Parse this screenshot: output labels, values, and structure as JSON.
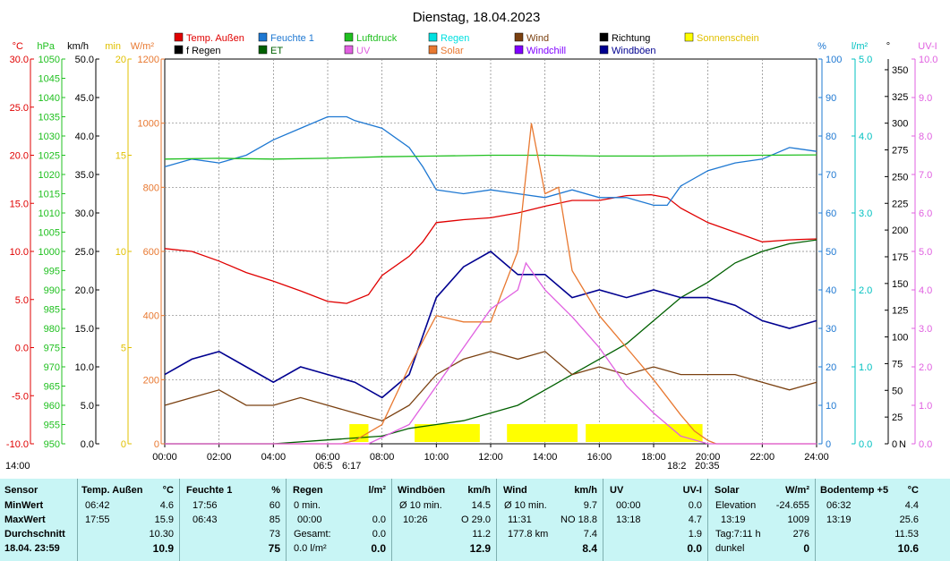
{
  "chart_data": {
    "type": "line",
    "title": "Dienstag, 18.04.2023",
    "x_ticks": [
      "00:00",
      "02:00",
      "04:00",
      "06:00",
      "08:00",
      "10:00",
      "12:00",
      "14:00",
      "16:00",
      "18:00",
      "20:00",
      "22:00",
      "24:00"
    ],
    "x_range_hours": [
      0,
      24
    ],
    "grid": true,
    "legend": [
      {
        "label": "Temp. Außen",
        "color": "#e00000"
      },
      {
        "label": "Feuchte 1",
        "color": "#1e78d2"
      },
      {
        "label": "Luftdruck",
        "color": "#20c020"
      },
      {
        "label": "Regen",
        "color": "#00e0e0"
      },
      {
        "label": "Wind",
        "color": "#7a4010"
      },
      {
        "label": "Richtung",
        "color": "#000000"
      },
      {
        "label": "Sonnenschein",
        "color": "#ffff00"
      },
      {
        "label": "f Regen",
        "color": "#000000"
      },
      {
        "label": "ET",
        "color": "#006000"
      },
      {
        "label": "UV",
        "color": "#e060e0"
      },
      {
        "label": "Solar",
        "color": "#e87830"
      },
      {
        "label": "Windchill",
        "color": "#8000ff"
      },
      {
        "label": "Windböen",
        "color": "#000090"
      }
    ],
    "left_axes": [
      {
        "unit": "°C",
        "color": "#e00000",
        "ticks": [
          "30.0",
          "25.0",
          "20.0",
          "15.0",
          "10.0",
          "5.0",
          "0.0",
          "-5.0",
          "-10.0"
        ]
      },
      {
        "unit": "hPa",
        "color": "#20c020",
        "ticks": [
          "1050",
          "1045",
          "1040",
          "1035",
          "1030",
          "1025",
          "1020",
          "1015",
          "1010",
          "1005",
          "1000",
          "995",
          "990",
          "985",
          "980",
          "975",
          "970",
          "965",
          "960",
          "955",
          "950"
        ]
      },
      {
        "unit": "km/h",
        "color": "#000000",
        "ticks": [
          "50.0",
          "45.0",
          "40.0",
          "35.0",
          "30.0",
          "25.0",
          "20.0",
          "15.0",
          "10.0",
          "5.0",
          "0.0"
        ]
      },
      {
        "unit": "min",
        "color": "#e0c000",
        "ticks": [
          "20",
          "15",
          "10",
          "5",
          "0"
        ]
      },
      {
        "unit": "W/m²",
        "color": "#e87830",
        "ticks": [
          "1200",
          "1000",
          "800",
          "600",
          "400",
          "200",
          "0"
        ]
      }
    ],
    "right_axes": [
      {
        "unit": "%",
        "color": "#1e78d2",
        "ticks": [
          "100",
          "90",
          "80",
          "70",
          "60",
          "50",
          "40",
          "30",
          "20",
          "10",
          "0"
        ]
      },
      {
        "unit": "l/m²",
        "color": "#00c0c0",
        "ticks": [
          "5.0",
          "4.0",
          "3.0",
          "2.0",
          "1.0",
          "0.0"
        ]
      },
      {
        "unit": "°",
        "color": "#000000",
        "ticks": [
          "350",
          "325",
          "300",
          "275",
          "250",
          "225",
          "200",
          "175",
          "150",
          "125",
          "100",
          "75",
          "50",
          "25",
          "0"
        ],
        "zero_label": "N"
      },
      {
        "unit": "UV-I",
        "color": "#e060e0",
        "ticks": [
          "10.0",
          "9.0",
          "8.0",
          "7.0",
          "6.0",
          "5.0",
          "4.0",
          "3.0",
          "2.0",
          "1.0",
          "0.0"
        ]
      }
    ],
    "series": [
      {
        "name": "Temp. Außen",
        "axis": "°C",
        "x": [
          0,
          1,
          2,
          3,
          4,
          5,
          6,
          6.7,
          7.5,
          8,
          9,
          9.5,
          10,
          11,
          12,
          13,
          14,
          15,
          16,
          17,
          17.9,
          18.5,
          19,
          20,
          21,
          22,
          23,
          24
        ],
        "y": [
          10.3,
          10.0,
          9.0,
          7.8,
          6.9,
          5.9,
          4.8,
          4.6,
          5.5,
          7.5,
          9.5,
          11.0,
          13.0,
          13.3,
          13.5,
          14.0,
          14.7,
          15.3,
          15.3,
          15.8,
          15.9,
          15.6,
          14.5,
          13.0,
          12.0,
          11.0,
          11.2,
          11.3
        ]
      },
      {
        "name": "Feuchte 1",
        "axis": "%",
        "x": [
          0,
          1,
          2,
          3,
          4,
          5,
          6,
          6.7,
          7,
          8,
          9,
          9.5,
          10,
          11,
          12,
          13,
          14,
          15,
          16,
          17,
          18,
          18.5,
          19,
          20,
          21,
          22,
          23,
          24
        ],
        "y": [
          72,
          74,
          73,
          75,
          79,
          82,
          85,
          85,
          84,
          82,
          77,
          72,
          66,
          65,
          66,
          65,
          64,
          66,
          64,
          64,
          62,
          62,
          67,
          71,
          73,
          74,
          77,
          76
        ]
      },
      {
        "name": "Luftdruck",
        "axis": "hPa",
        "x": [
          0,
          2,
          4,
          6,
          8,
          10,
          12,
          14,
          16,
          18,
          20,
          22,
          24
        ],
        "y": [
          1024.0,
          1024.2,
          1024.0,
          1024.2,
          1024.6,
          1024.8,
          1025.0,
          1025.0,
          1024.8,
          1024.8,
          1024.9,
          1025.0,
          1025.1
        ]
      },
      {
        "name": "ET",
        "axis": "l/m²",
        "x": [
          0,
          2,
          4,
          6,
          8,
          9,
          10,
          11,
          12,
          13,
          14,
          15,
          16,
          17,
          18,
          19,
          20,
          21,
          22,
          23,
          24
        ],
        "y": [
          0.0,
          0.0,
          0.0,
          0.05,
          0.1,
          0.2,
          0.25,
          0.3,
          0.4,
          0.5,
          0.7,
          0.9,
          1.1,
          1.3,
          1.6,
          1.9,
          2.1,
          2.35,
          2.5,
          2.6,
          2.65
        ]
      },
      {
        "name": "Wind",
        "axis": "km/h",
        "x": [
          0,
          1,
          2,
          3,
          4,
          5,
          6,
          7,
          8,
          9,
          10,
          11,
          12,
          13,
          14,
          15,
          16,
          17,
          18,
          19,
          20,
          21,
          22,
          23,
          24
        ],
        "y": [
          5,
          6,
          7,
          5,
          5,
          6,
          5,
          4,
          3,
          5,
          9,
          11,
          12,
          11,
          12,
          9,
          10,
          9,
          10,
          9,
          9,
          9,
          8,
          7,
          8
        ]
      },
      {
        "name": "Windböen",
        "axis": "km/h",
        "x": [
          0,
          1,
          2,
          3,
          4,
          5,
          6,
          7,
          8,
          9,
          10,
          11,
          12,
          13,
          14,
          15,
          16,
          17,
          18,
          19,
          20,
          21,
          22,
          23,
          24
        ],
        "y": [
          9,
          11,
          12,
          10,
          8,
          10,
          9,
          8,
          6,
          9,
          19,
          23,
          25,
          22,
          22,
          19,
          20,
          19,
          20,
          19,
          19,
          18,
          16,
          15,
          16
        ]
      },
      {
        "name": "Solar",
        "axis": "W/m²",
        "x": [
          0,
          6.5,
          7,
          8,
          9,
          10,
          11,
          12,
          13,
          13.5,
          14,
          14.5,
          15,
          16,
          17,
          18,
          19,
          19.5,
          20,
          20.3,
          24
        ],
        "y": [
          0,
          0,
          10,
          60,
          240,
          400,
          380,
          380,
          600,
          1000,
          780,
          800,
          540,
          400,
          300,
          200,
          90,
          40,
          10,
          0,
          0
        ]
      },
      {
        "name": "UV",
        "axis": "UV-I",
        "x": [
          0,
          7.5,
          9,
          10,
          11,
          12,
          13,
          13.3,
          14,
          15,
          16,
          17,
          18,
          19,
          20,
          24
        ],
        "y": [
          0,
          0,
          0.5,
          1.5,
          2.5,
          3.5,
          4.0,
          4.7,
          4.0,
          3.3,
          2.5,
          1.5,
          0.8,
          0.2,
          0,
          0
        ]
      }
    ],
    "sunshine_hours_bars": [
      [
        6.8,
        7.5
      ],
      [
        9.2,
        11.6
      ],
      [
        12.6,
        15.2
      ],
      [
        15.5,
        19.8
      ]
    ],
    "markers": {
      "sunrise": "06:5",
      "sunrise_b": "6:17",
      "sunset": "18:2",
      "sunset_b": "20:35",
      "corner": "14:00"
    }
  },
  "table": {
    "sensor": {
      "title": "Sensor",
      "rows": [
        "MinWert",
        "MaxWert",
        "Durchschnitt"
      ],
      "footer": "18.04. 23:59"
    },
    "temp": {
      "title": "Temp. Außen",
      "unit": "°C",
      "r1": [
        "06:42",
        "4.6"
      ],
      "r2": [
        "17:55",
        "15.9"
      ],
      "r3": [
        "",
        "10.30"
      ],
      "footer": "10.9"
    },
    "humidity": {
      "title": "Feuchte 1",
      "unit": "%",
      "r1": [
        "17:56",
        "60"
      ],
      "r2": [
        "06:43",
        "85"
      ],
      "r3": [
        "",
        "73"
      ],
      "footer": "75"
    },
    "rain": {
      "title": "Regen",
      "unit": "l/m²",
      "r1": [
        "0 min.",
        ""
      ],
      "r2": [
        "00:00",
        "0.0"
      ],
      "r3": [
        "Gesamt:",
        "0.0"
      ],
      "footer_label": "0.0 l/m²",
      "footer": "0.0"
    },
    "gusts": {
      "title": "Windböen",
      "unit": "km/h",
      "r1": [
        "Ø 10 min.",
        "14.5"
      ],
      "r2": [
        "10:26",
        "O 29.0"
      ],
      "r3": [
        "",
        "11.2"
      ],
      "footer": "12.9"
    },
    "wind": {
      "title": "Wind",
      "unit": "km/h",
      "r1": [
        "Ø 10 min.",
        "9.7"
      ],
      "r2": [
        "11:31",
        "NO 18.8"
      ],
      "r3": [
        "177.8 km",
        "7.4"
      ],
      "footer": "8.4"
    },
    "uv": {
      "title": "UV",
      "unit": "UV-I",
      "r1": [
        "00:00",
        "0.0"
      ],
      "r2": [
        "13:18",
        "4.7"
      ],
      "r3": [
        "",
        "1.9"
      ],
      "footer": "0.0"
    },
    "solar": {
      "title": "Solar",
      "unit": "W/m²",
      "r1": [
        "Elevation",
        "-24.655"
      ],
      "r2": [
        "13:19",
        "1009"
      ],
      "r3": [
        "Tag:7:11 h",
        "276"
      ],
      "footer_label": "dunkel",
      "footer": "0"
    },
    "soil": {
      "title": "Bodentemp +5",
      "unit": "°C",
      "r1": [
        "06:32",
        "4.4"
      ],
      "r2": [
        "13:19",
        "25.6"
      ],
      "r3": [
        "",
        "11.53"
      ],
      "footer": "10.6"
    }
  }
}
